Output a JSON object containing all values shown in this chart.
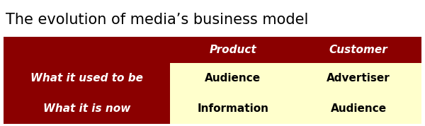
{
  "title": "The evolution of media’s business model",
  "title_fontsize": 15,
  "title_color": "#000000",
  "title_fontweight": "normal",
  "col_headers": [
    "Product",
    "Customer"
  ],
  "row_headers": [
    "What it used to be",
    "What it is now"
  ],
  "cell_values": [
    [
      "Audience",
      "Advertiser"
    ],
    [
      "Information",
      "Audience"
    ]
  ],
  "dark_red": "#8B0000",
  "light_yellow": "#FFFFCC",
  "white": "#FFFFFF",
  "header_text_color": "#FFFFFF",
  "cell_text_color": "#000000",
  "row_header_text_color": "#FFFFFF",
  "col_header_fontsize": 11,
  "row_header_fontsize": 11,
  "cell_fontsize": 11,
  "fig_width": 6.0,
  "fig_height": 1.78,
  "dpi": 100
}
